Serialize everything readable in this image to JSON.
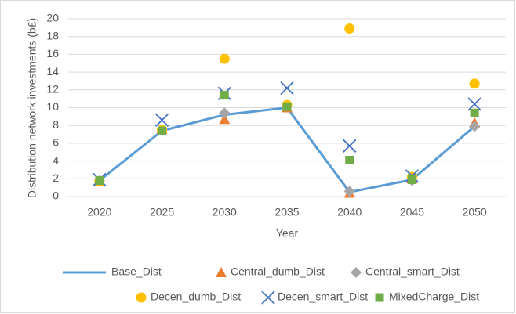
{
  "chart_data": {
    "type": "line",
    "y_label": "Distribution network investments (b£)",
    "x_label": "Year",
    "categories": [
      "2020",
      "2025",
      "2030",
      "2035",
      "2040",
      "2045",
      "2050"
    ],
    "series": [
      {
        "name": "Base_Dist",
        "color": "#5b9bd5",
        "marker": "none",
        "values": [
          1.8,
          7.4,
          9.2,
          10.0,
          0.5,
          1.9,
          7.9
        ]
      },
      {
        "name": "Central_dumb_Dist",
        "color": "#ed7d31",
        "marker": "triangle",
        "values": [
          1.7,
          7.6,
          8.7,
          10.0,
          0.4,
          2.0,
          8.3
        ]
      },
      {
        "name": "Central_smart_Dist",
        "color": "#a5a5a5",
        "marker": "diamond",
        "values": [
          1.8,
          7.5,
          9.4,
          10.2,
          0.6,
          1.8,
          7.9
        ]
      },
      {
        "name": "Decen_dumb_Dist",
        "color": "#ffc000",
        "marker": "circle",
        "values": [
          1.7,
          7.5,
          15.5,
          10.3,
          18.9,
          2.2,
          12.7
        ]
      },
      {
        "name": "Decen_smart_Dist",
        "color": "#4472c4",
        "marker": "x",
        "values": [
          1.9,
          8.6,
          11.6,
          12.2,
          5.7,
          2.3,
          10.4
        ]
      },
      {
        "name": "MixedCharge_Dist",
        "color": "#70ad47",
        "marker": "square",
        "values": [
          1.8,
          7.4,
          11.4,
          10.1,
          4.1,
          1.9,
          9.4
        ]
      }
    ],
    "ylim": [
      0,
      20
    ],
    "yticks": [
      0,
      2,
      4,
      6,
      8,
      10,
      12,
      14,
      16,
      18,
      20
    ],
    "grid": true
  }
}
